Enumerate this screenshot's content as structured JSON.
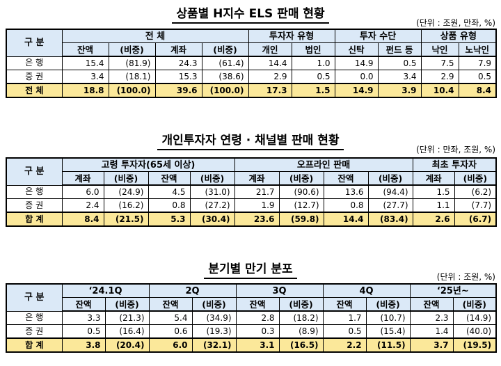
{
  "t1": {
    "title": "상품별 H지수 ELS 판매 현황",
    "unit": "(단위 : 조원, 만좌, %)",
    "label": "구  분",
    "groups": [
      "전  체",
      "투자자 유형",
      "투자 수단",
      "상품 유형"
    ],
    "cols": [
      "잔액",
      "(비중)",
      "계좌",
      "(비중)",
      "개인",
      "법인",
      "신탁",
      "펀드 등",
      "낙인",
      "노낙인"
    ],
    "rows": [
      {
        "label": "은  행",
        "values": [
          "15.4",
          "(81.9)",
          "24.3",
          "(61.4)",
          "14.4",
          "1.0",
          "14.9",
          "0.5",
          "7.5",
          "7.9"
        ]
      },
      {
        "label": "증  권",
        "values": [
          "3.4",
          "(18.1)",
          "15.3",
          "(38.6)",
          "2.9",
          "0.5",
          "0.0",
          "3.4",
          "2.9",
          "0.5"
        ]
      },
      {
        "label": "전  체",
        "values": [
          "18.8",
          "(100.0)",
          "39.6",
          "(100.0)",
          "17.3",
          "1.5",
          "14.9",
          "3.9",
          "10.4",
          "8.4"
        ]
      }
    ]
  },
  "t2": {
    "title": "개인투자자 연령 · 채널별 판매 현황",
    "unit": "(단위 : 만좌, 조원, %)",
    "label": "구  분",
    "groups": [
      "고령 투자자(65세 이상)",
      "오프라인 판매",
      "최초 투자자"
    ],
    "cols": [
      "계좌",
      "(비중)",
      "잔액",
      "(비중)",
      "계좌",
      "(비중)",
      "잔액",
      "(비중)",
      "계좌",
      "(비중)"
    ],
    "rows": [
      {
        "label": "은  행",
        "values": [
          "6.0",
          "(24.9)",
          "4.5",
          "(31.0)",
          "21.7",
          "(90.6)",
          "13.6",
          "(94.4)",
          "1.5",
          "(6.2)"
        ]
      },
      {
        "label": "증  권",
        "values": [
          "2.4",
          "(16.2)",
          "0.8",
          "(27.2)",
          "1.9",
          "(12.7)",
          "0.8",
          "(27.7)",
          "1.1",
          "(7.7)"
        ]
      },
      {
        "label": "합  계",
        "values": [
          "8.4",
          "(21.5)",
          "5.3",
          "(30.4)",
          "23.6",
          "(59.8)",
          "14.4",
          "(83.4)",
          "2.6",
          "(6.7)"
        ]
      }
    ]
  },
  "t3": {
    "title": "분기별 만기 분포",
    "unit": "(단위 : 조원, %)",
    "label": "구  분",
    "groups": [
      "‘24.1Q",
      "2Q",
      "3Q",
      "4Q",
      "‘25년~"
    ],
    "cols": [
      "잔액",
      "(비중)",
      "잔액",
      "(비중)",
      "잔액",
      "(비중)",
      "잔액",
      "(비중)",
      "잔액",
      "(비중)"
    ],
    "rows": [
      {
        "label": "은  행",
        "values": [
          "3.3",
          "(21.3)",
          "5.4",
          "(34.9)",
          "2.8",
          "(18.2)",
          "1.7",
          "(10.7)",
          "2.3",
          "(14.9)"
        ]
      },
      {
        "label": "증  권",
        "values": [
          "0.5",
          "(16.4)",
          "0.6",
          "(19.3)",
          "0.3",
          "(8.9)",
          "0.5",
          "(15.4)",
          "1.4",
          "(40.0)"
        ]
      },
      {
        "label": "합  계",
        "values": [
          "3.8",
          "(20.4)",
          "6.0",
          "(32.1)",
          "3.1",
          "(16.5)",
          "2.2",
          "(11.5)",
          "3.7",
          "(19.5)"
        ]
      }
    ]
  }
}
